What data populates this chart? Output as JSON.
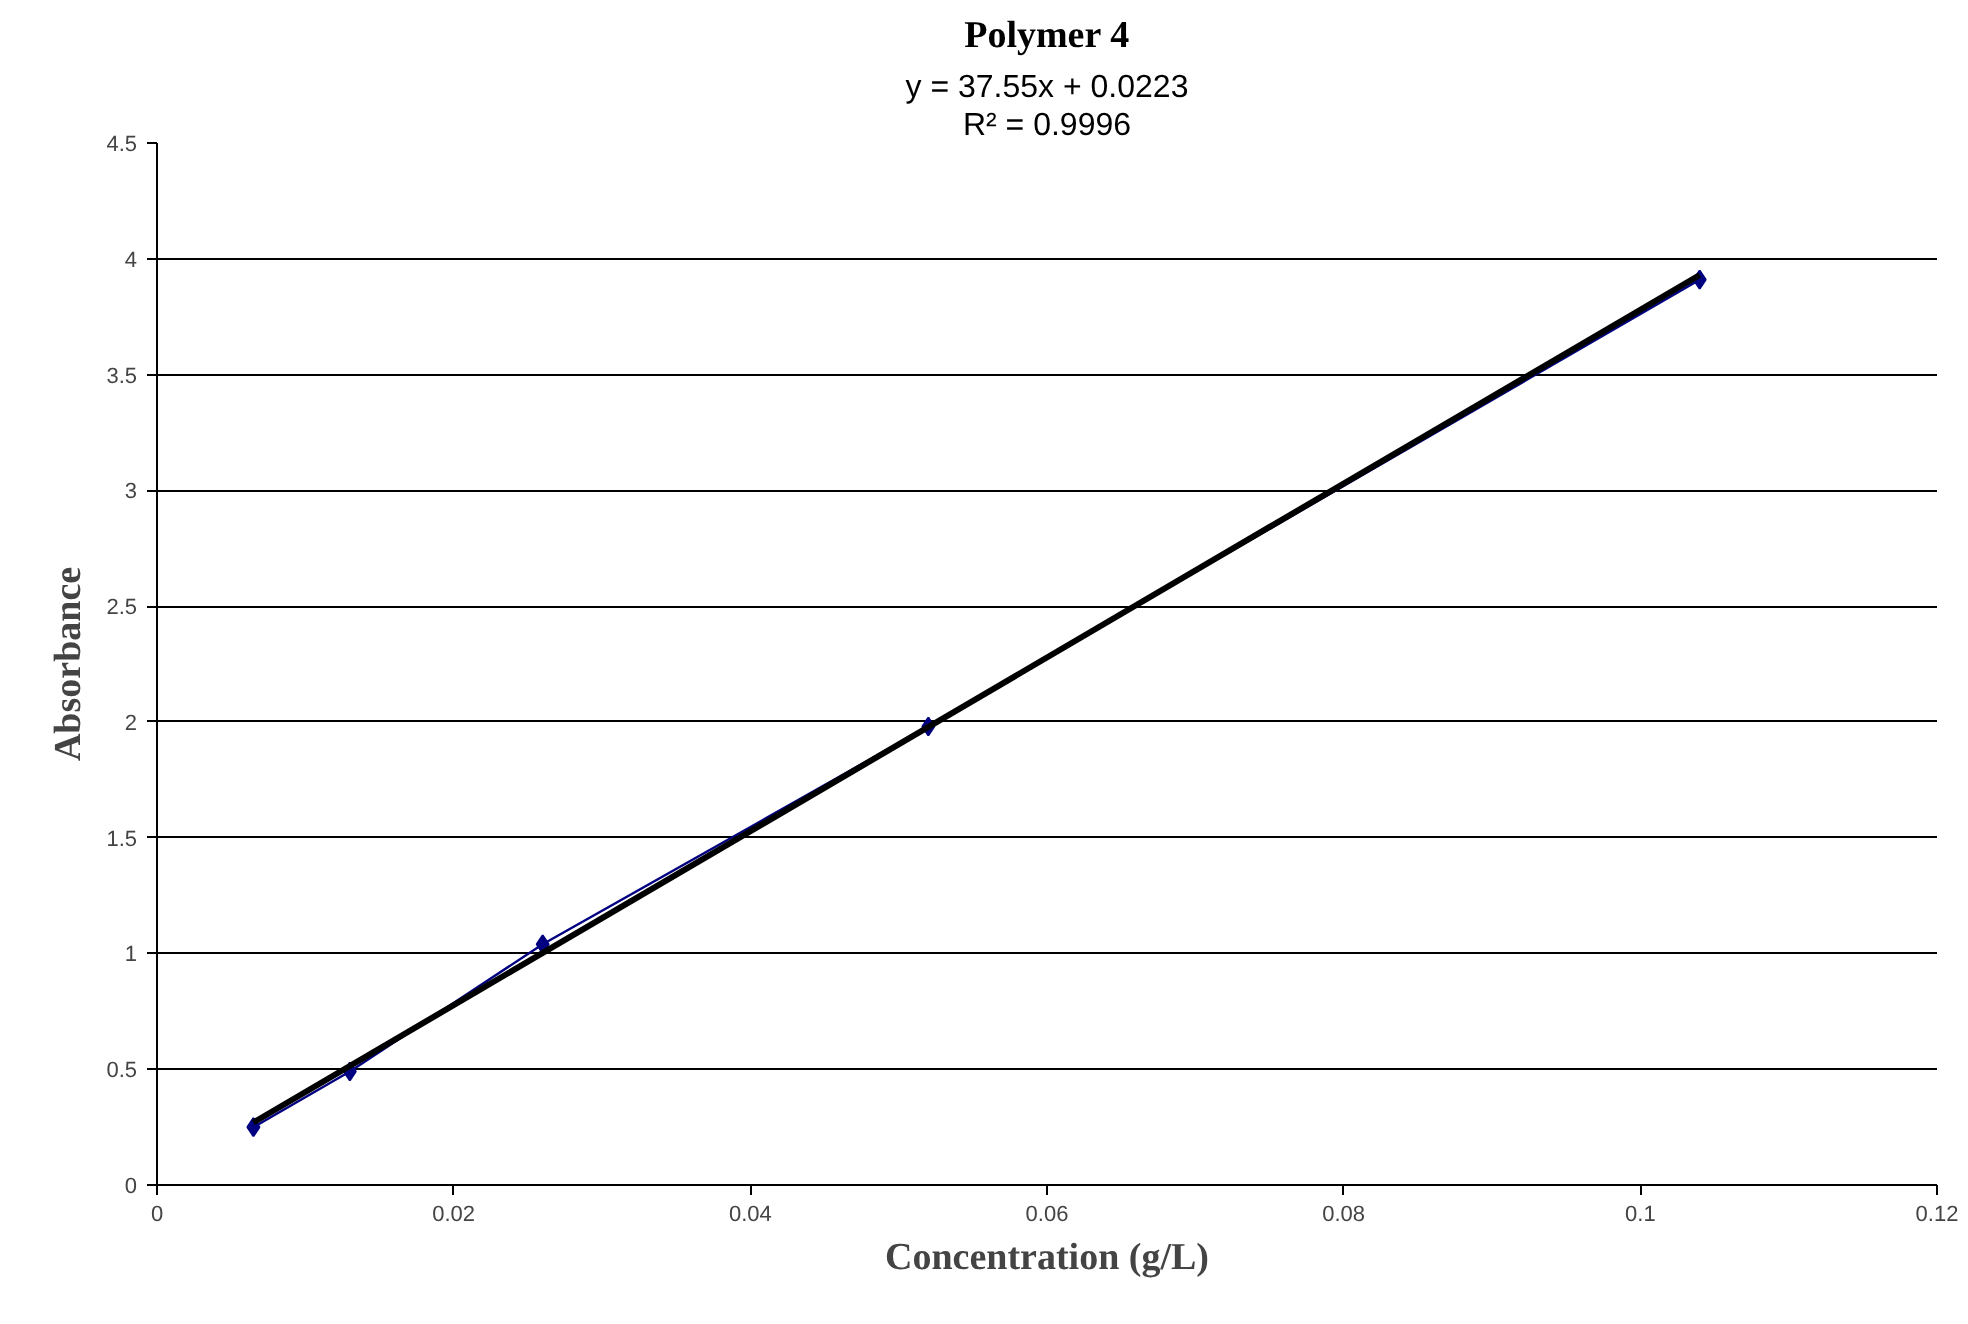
{
  "chart_data": {
    "type": "line",
    "title": "Polymer 4",
    "xlabel": "Concentration (g/L)",
    "ylabel": "Absorbance",
    "x": [
      0.0065,
      0.013,
      0.026,
      0.052,
      0.104
    ],
    "series": [
      {
        "color": "#000080",
        "values": [
          0.25,
          0.49,
          1.04,
          1.98,
          3.91
        ],
        "marker": "diamond"
      },
      {
        "type": "line",
        "color": "#000000",
        "x": [
          0.0065,
          0.104
        ],
        "values": [
          0.27,
          3.93
        ],
        "marker": "none"
      }
    ],
    "annotations": [
      "y = 37.55x + 0.0223",
      "R² = 0.9996"
    ],
    "xlim": [
      0,
      0.12
    ],
    "xticks": [
      0,
      0.02,
      0.04,
      0.06,
      0.08,
      0.1,
      0.12
    ],
    "ylim": [
      0,
      4.5
    ],
    "yticks": [
      0,
      0.5,
      1,
      1.5,
      2,
      2.5,
      3,
      3.5,
      4,
      4.5
    ],
    "grid": "y"
  }
}
